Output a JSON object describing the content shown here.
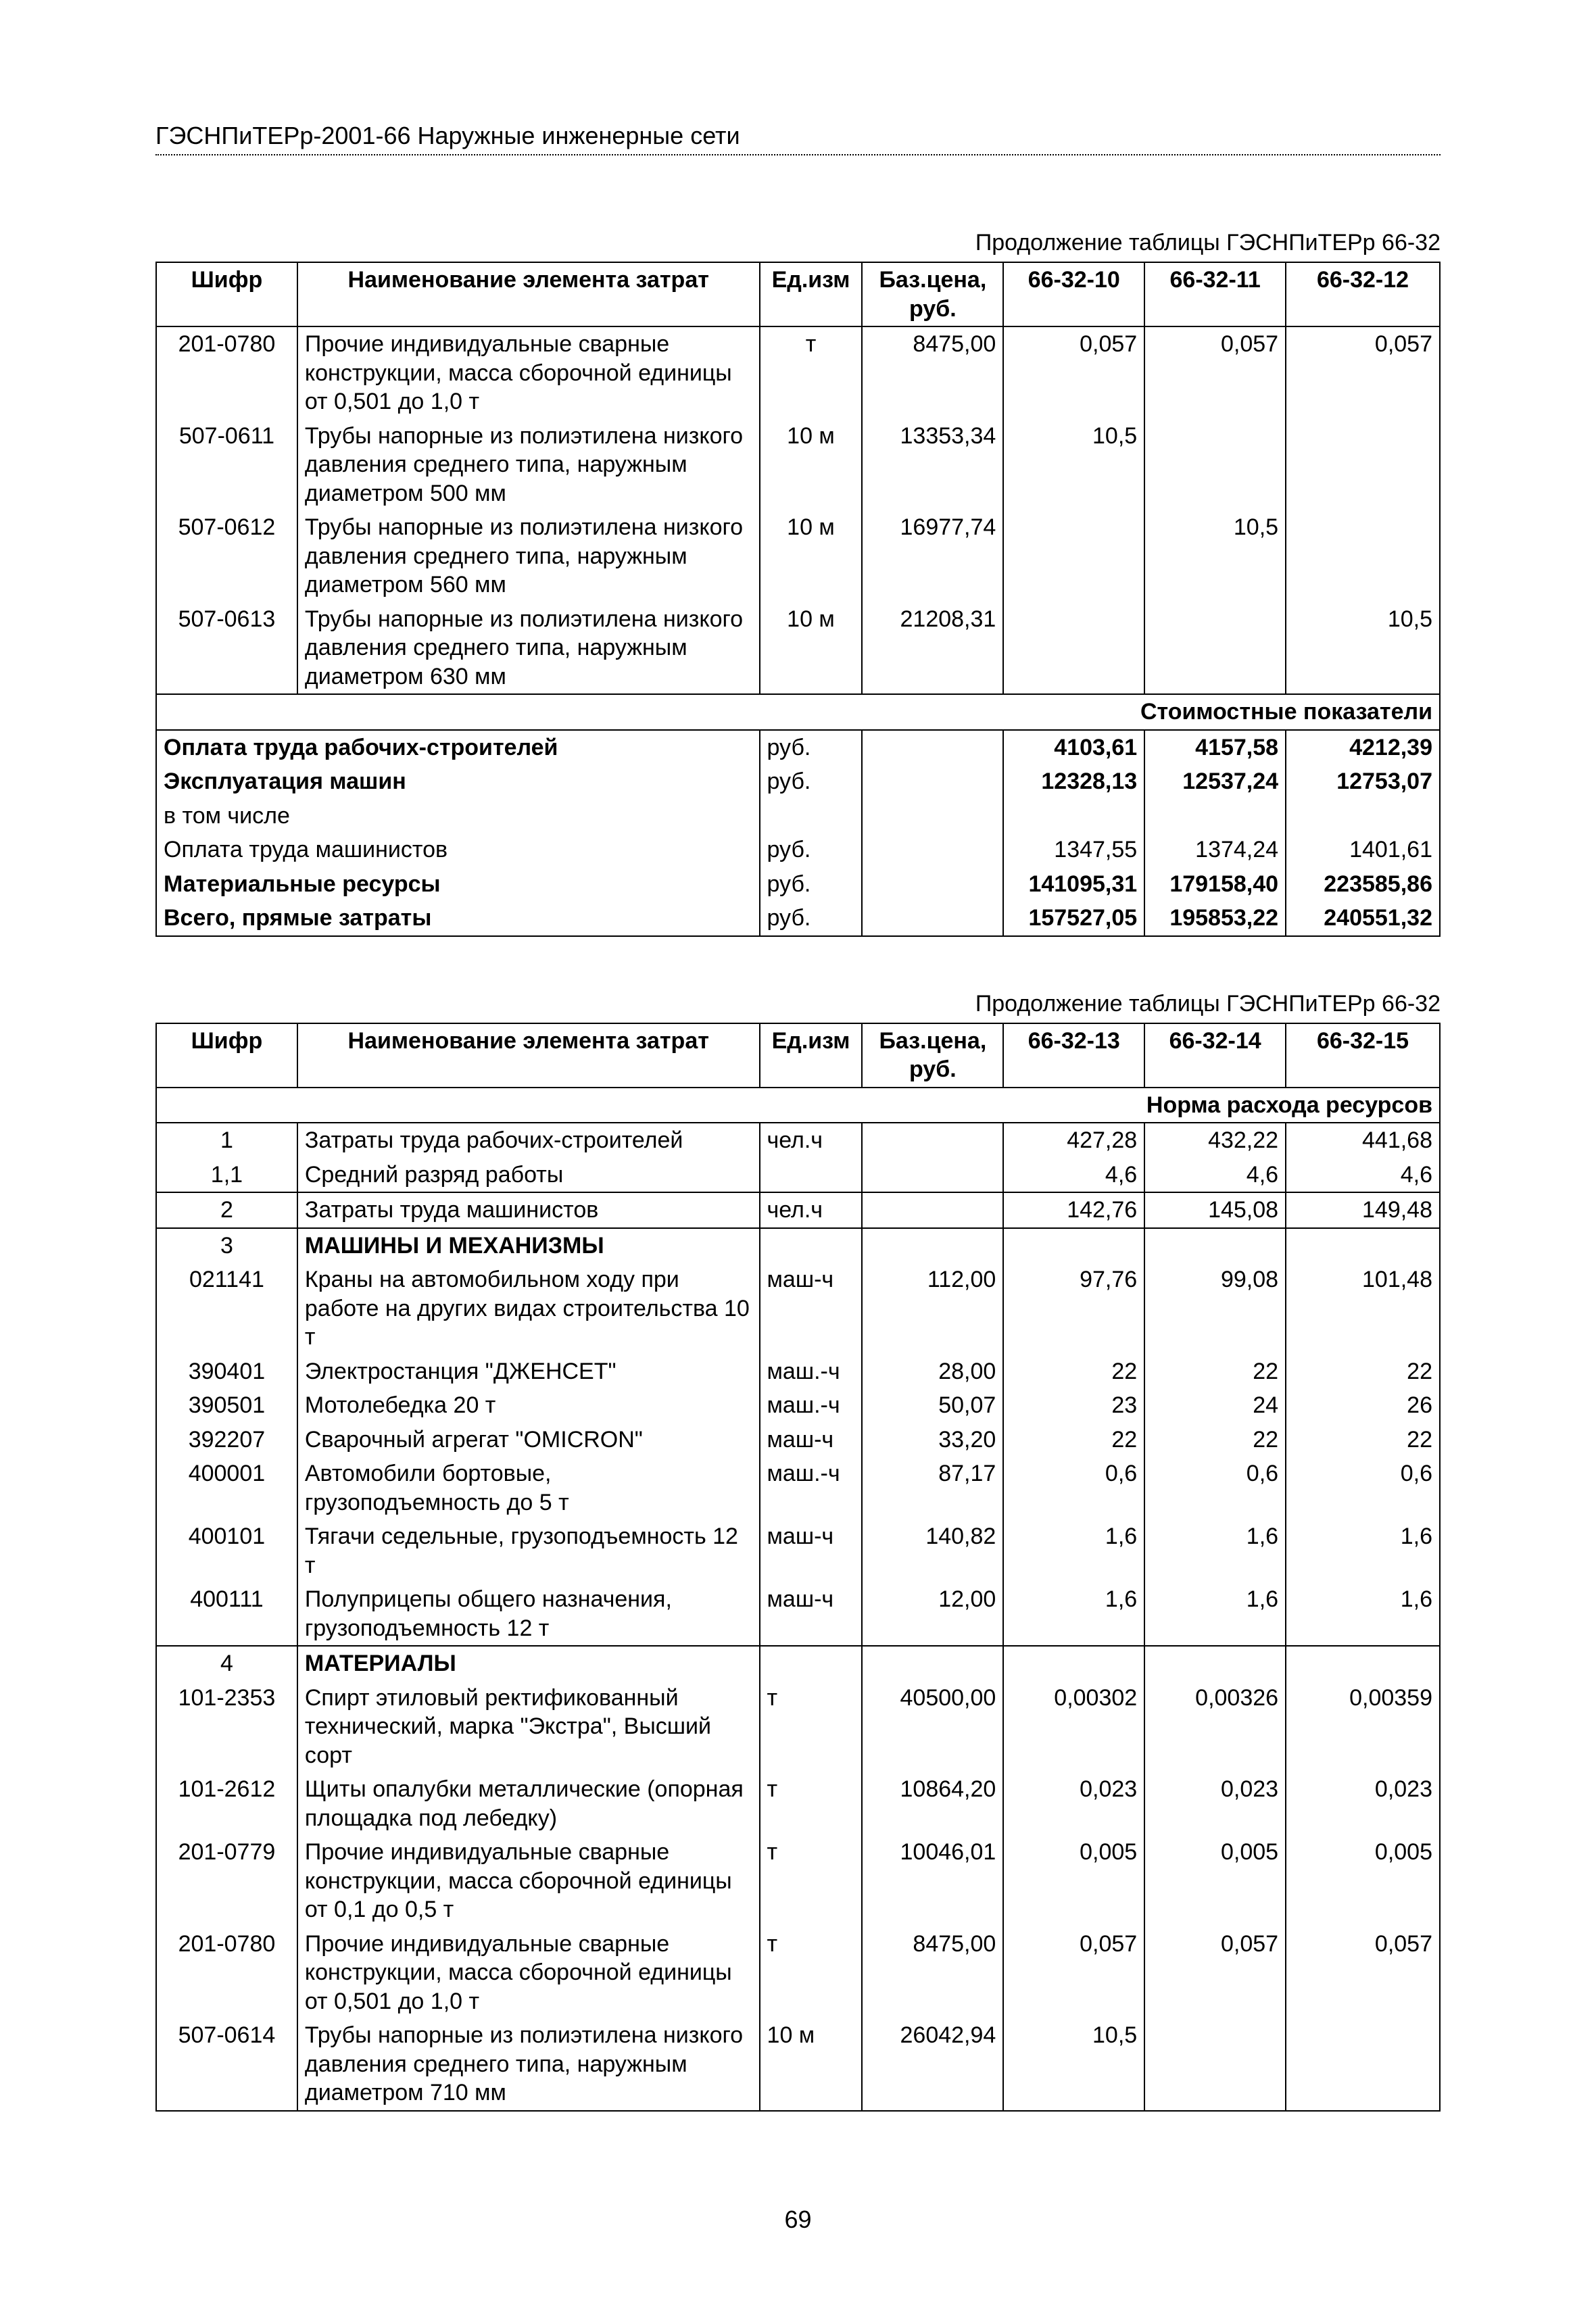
{
  "page_number": "69",
  "header": "ГЭСНПиТЕРр-2001-66 Наружные инженерные сети",
  "table1": {
    "caption": "Продолжение таблицы ГЭСНПиТЕРр 66-32",
    "columns": [
      "Шифр",
      "Наименование элемента затрат",
      "Ед.изм",
      "Баз.цена, руб.",
      "66-32-10",
      "66-32-11",
      "66-32-12"
    ],
    "rows": [
      {
        "code": "201-0780",
        "name": "Прочие индивидуальные сварные конструкции, масса сборочной единицы от 0,501 до 1,0 т",
        "unit": "т",
        "price": "8475,00",
        "v1": "0,057",
        "v2": "0,057",
        "v3": "0,057"
      },
      {
        "code": "507-0611",
        "name": "Трубы напорные из полиэтилена низкого давления среднего типа, наружным диаметром 500 мм",
        "unit": "10 м",
        "price": "13353,34",
        "v1": "10,5",
        "v2": "",
        "v3": ""
      },
      {
        "code": "507-0612",
        "name": "Трубы напорные из полиэтилена низкого давления среднего типа, наружным диаметром 560 мм",
        "unit": "10 м",
        "price": "16977,74",
        "v1": "",
        "v2": "10,5",
        "v3": ""
      },
      {
        "code": "507-0613",
        "name": "Трубы напорные из полиэтилена низкого давления среднего типа, наружным диаметром 630 мм",
        "unit": "10 м",
        "price": "21208,31",
        "v1": "",
        "v2": "",
        "v3": "10,5"
      }
    ],
    "band": "Стоимостные показатели",
    "cost_rows": [
      {
        "name": "Оплата труда рабочих-строителей",
        "unit": "руб.",
        "v1": "4103,61",
        "v2": "4157,58",
        "v3": "4212,39",
        "bold": true
      },
      {
        "name": "Эксплуатация машин",
        "unit": "руб.",
        "v1": "12328,13",
        "v2": "12537,24",
        "v3": "12753,07",
        "bold": true
      },
      {
        "name": "в том числе",
        "unit": "",
        "v1": "",
        "v2": "",
        "v3": "",
        "bold": false
      },
      {
        "name": "Оплата труда машинистов",
        "unit": "руб.",
        "v1": "1347,55",
        "v2": "1374,24",
        "v3": "1401,61",
        "bold": false
      },
      {
        "name": "Материальные ресурсы",
        "unit": "руб.",
        "v1": "141095,31",
        "v2": "179158,40",
        "v3": "223585,86",
        "bold": true
      },
      {
        "name": "Всего, прямые затраты",
        "unit": "руб.",
        "v1": "157527,05",
        "v2": "195853,22",
        "v3": "240551,32",
        "bold": true
      }
    ]
  },
  "table2": {
    "caption": "Продолжение таблицы ГЭСНПиТЕРр 66-32",
    "columns": [
      "Шифр",
      "Наименование элемента затрат",
      "Ед.изм",
      "Баз.цена, руб.",
      "66-32-13",
      "66-32-14",
      "66-32-15"
    ],
    "band1": "Норма расхода ресурсов",
    "rows": [
      {
        "code": "1",
        "name": "Затраты труда рабочих-строителей",
        "unit": "чел.ч",
        "price": "",
        "v1": "427,28",
        "v2": "432,22",
        "v3": "441,68",
        "sep": false
      },
      {
        "code": "1,1",
        "name": "Средний разряд работы",
        "unit": "",
        "price": "",
        "v1": "4,6",
        "v2": "4,6",
        "v3": "4,6",
        "sep": false
      },
      {
        "code": "2",
        "name": "Затраты труда машинистов",
        "unit": "чел.ч",
        "price": "",
        "v1": "142,76",
        "v2": "145,08",
        "v3": "149,48",
        "sep": true
      },
      {
        "code": "3",
        "name": "МАШИНЫ И МЕХАНИЗМЫ",
        "unit": "",
        "price": "",
        "v1": "",
        "v2": "",
        "v3": "",
        "bold": true,
        "sep": true
      },
      {
        "code": "021141",
        "name": "Краны на автомобильном ходу при работе на других видах строительства 10 т",
        "unit": "маш-ч",
        "price": "112,00",
        "v1": "97,76",
        "v2": "99,08",
        "v3": "101,48",
        "sep": false
      },
      {
        "code": "390401",
        "name": "Электростанция \"ДЖЕНСЕТ\"",
        "unit": "маш.-ч",
        "price": "28,00",
        "v1": "22",
        "v2": "22",
        "v3": "22",
        "sep": false
      },
      {
        "code": "390501",
        "name": "Мотолебедка 20 т",
        "unit": "маш.-ч",
        "price": "50,07",
        "v1": "23",
        "v2": "24",
        "v3": "26",
        "sep": false
      },
      {
        "code": "392207",
        "name": "Сварочный агрегат \"OMICRON\"",
        "unit": "маш-ч",
        "price": "33,20",
        "v1": "22",
        "v2": "22",
        "v3": "22",
        "sep": false
      },
      {
        "code": "400001",
        "name": "Автомобили бортовые, грузоподъемность до 5 т",
        "unit": "маш.-ч",
        "price": "87,17",
        "v1": "0,6",
        "v2": "0,6",
        "v3": "0,6",
        "sep": false
      },
      {
        "code": "400101",
        "name": "Тягачи седельные, грузоподъемность 12 т",
        "unit": "маш-ч",
        "price": "140,82",
        "v1": "1,6",
        "v2": "1,6",
        "v3": "1,6",
        "sep": false
      },
      {
        "code": "400111",
        "name": "Полуприцепы общего назначения, грузоподъемность 12 т",
        "unit": "маш-ч",
        "price": "12,00",
        "v1": "1,6",
        "v2": "1,6",
        "v3": "1,6",
        "sep": false
      },
      {
        "code": "4",
        "name": "МАТЕРИАЛЫ",
        "unit": "",
        "price": "",
        "v1": "",
        "v2": "",
        "v3": "",
        "bold": true,
        "sep": true
      },
      {
        "code": "101-2353",
        "name": "Спирт этиловый ректификованный технический, марка \"Экстра\", Высший сорт",
        "unit": "т",
        "price": "40500,00",
        "v1": "0,00302",
        "v2": "0,00326",
        "v3": "0,00359",
        "sep": false
      },
      {
        "code": "101-2612",
        "name": "Щиты опалубки металлические (опорная площадка под лебедку)",
        "unit": "т",
        "price": "10864,20",
        "v1": "0,023",
        "v2": "0,023",
        "v3": "0,023",
        "sep": false
      },
      {
        "code": "201-0779",
        "name": "Прочие индивидуальные сварные конструкции, масса сборочной единицы от 0,1 до 0,5 т",
        "unit": "т",
        "price": "10046,01",
        "v1": "0,005",
        "v2": "0,005",
        "v3": "0,005",
        "sep": false
      },
      {
        "code": "201-0780",
        "name": "Прочие индивидуальные сварные конструкции, масса сборочной единицы от 0,501 до 1,0 т",
        "unit": "т",
        "price": "8475,00",
        "v1": "0,057",
        "v2": "0,057",
        "v3": "0,057",
        "sep": false
      },
      {
        "code": "507-0614",
        "name": "Трубы напорные из полиэтилена низкого давления среднего типа, наружным диаметром 710 мм",
        "unit": "10 м",
        "price": "26042,94",
        "v1": "10,5",
        "v2": "",
        "v3": "",
        "sep": false
      }
    ]
  },
  "col_widths": {
    "c1": "11%",
    "c2": "36%",
    "c3": "8%",
    "c4": "11%",
    "c5": "11%",
    "c6": "11%",
    "c7": "12%"
  }
}
